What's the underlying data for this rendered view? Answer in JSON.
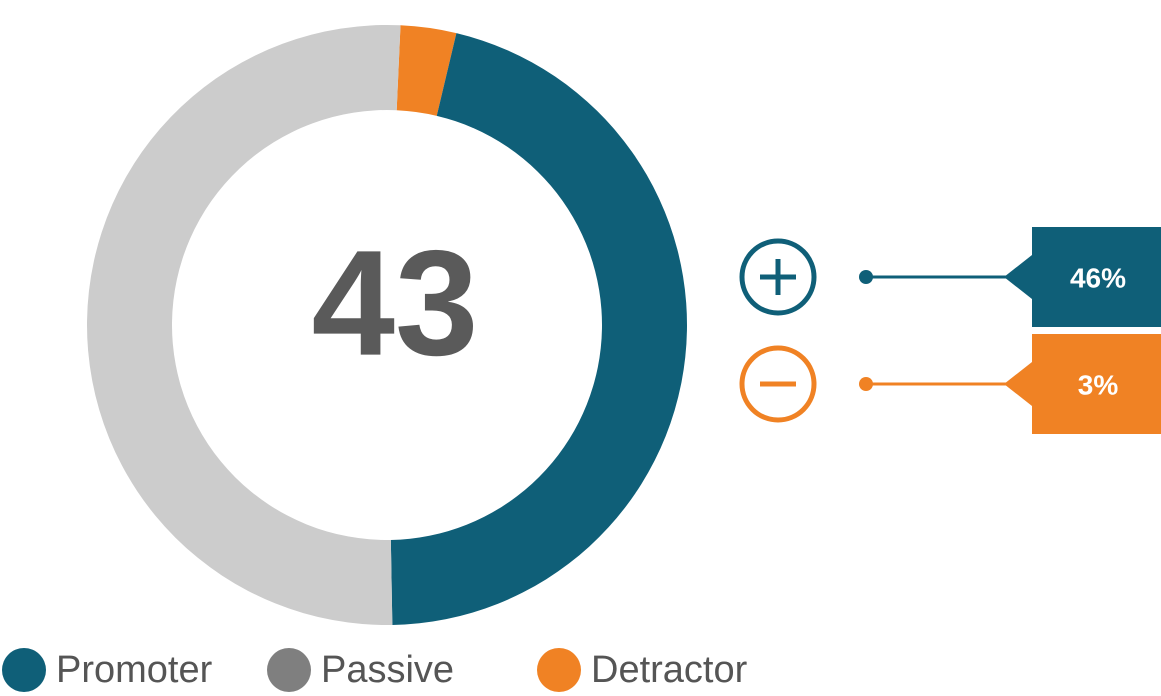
{
  "chart_data": {
    "type": "donut",
    "score": 43,
    "categories": [
      "Promoter",
      "Passive",
      "Detractor"
    ],
    "values": [
      46,
      51,
      3
    ],
    "value_labels": [
      "46%",
      null,
      "3%"
    ],
    "colors": [
      "#0f5f78",
      "#cccccc",
      "#f08224"
    ],
    "legend_colors": [
      "#0f5f78",
      "#7f7f7f",
      "#f08224"
    ]
  }
}
